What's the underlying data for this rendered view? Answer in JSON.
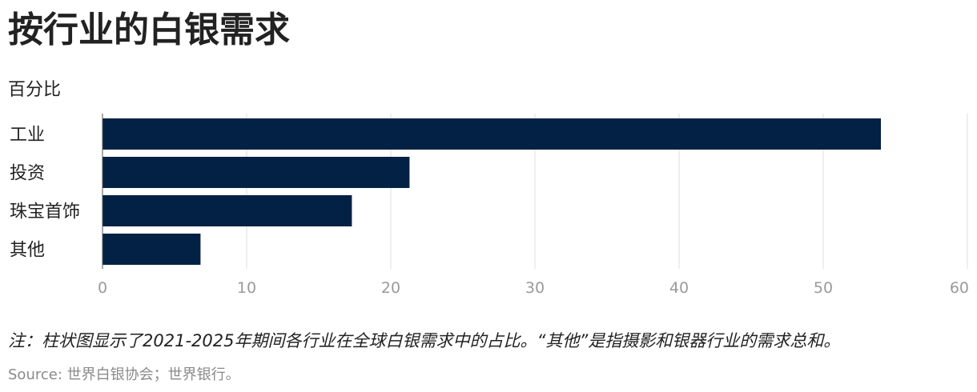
{
  "header": {
    "title": "按行业的白银需求",
    "subtitle": "百分比"
  },
  "footer": {
    "note": "注：柱状图显示了2021-2025年期间各行业在全球白银需求中的占比。“其他”是指摄影和银器行业的需求总和。",
    "source": "Source: 世界白银协会；世界银行。"
  },
  "colors": {
    "bar": "#022144",
    "grid": "#dcdcdc",
    "tick_text": "#9a9a9a",
    "label_text": "#222222"
  },
  "chart_data": {
    "type": "bar",
    "orientation": "horizontal",
    "title": "按行业的白银需求",
    "subtitle": "百分比",
    "categories": [
      "工业",
      "投资",
      "珠宝首饰",
      "其他"
    ],
    "values": [
      54,
      21.3,
      17.3,
      6.8
    ],
    "xlim": [
      0,
      60
    ],
    "xticks": [
      "0",
      "10",
      "20",
      "30",
      "40",
      "50",
      "60"
    ],
    "grid": true,
    "legend": "none"
  }
}
